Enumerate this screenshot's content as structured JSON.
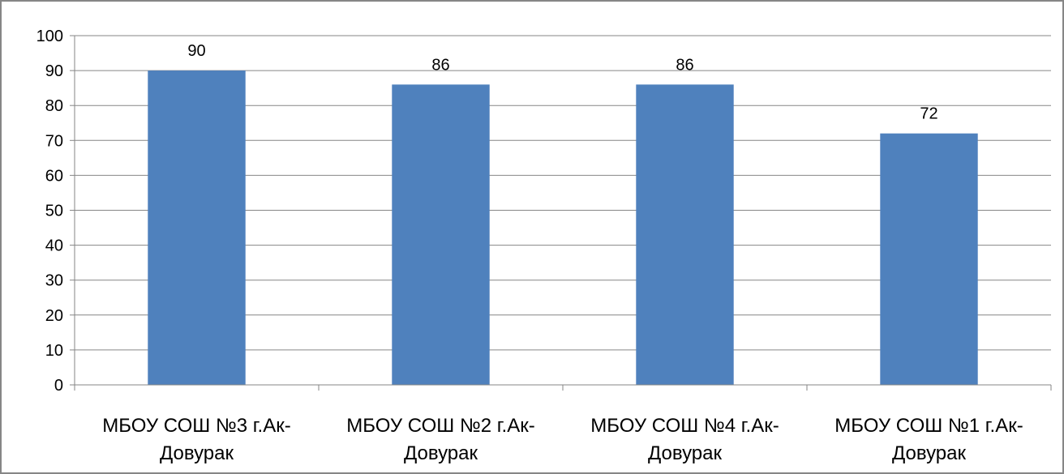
{
  "chart_data": {
    "type": "bar",
    "title": "",
    "xlabel": "",
    "ylabel": "",
    "categories": [
      [
        "МБОУ СОШ №3 г.Ак-",
        "Довурак"
      ],
      [
        "МБОУ СОШ №2 г.Ак-",
        "Довурак"
      ],
      [
        "МБОУ СОШ №4 г.Ак-",
        "Довурак"
      ],
      [
        "МБОУ СОШ №1 г.Ак-",
        "Довурак"
      ]
    ],
    "values": [
      90,
      86,
      86,
      72
    ],
    "data_labels": [
      "90",
      "86",
      "86",
      "72"
    ],
    "ylim": [
      0,
      100
    ],
    "yticks": [
      0,
      10,
      20,
      30,
      40,
      50,
      60,
      70,
      80,
      90,
      100
    ],
    "ytick_labels": [
      "0",
      "10",
      "20",
      "30",
      "40",
      "50",
      "60",
      "70",
      "80",
      "90",
      "100"
    ],
    "grid": "horizontal",
    "legend": "none",
    "colors": {
      "bar": "#4F81BD",
      "gridline": "#868686",
      "axis": "#868686",
      "frame": "#868686",
      "text": "#000000"
    }
  }
}
